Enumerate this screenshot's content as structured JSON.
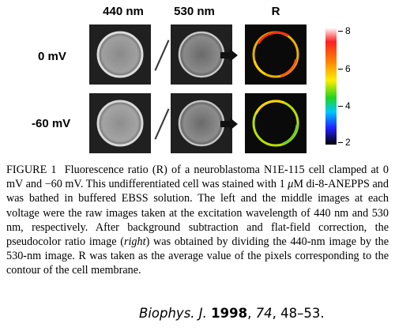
{
  "figure": {
    "column_headers": [
      "440 nm",
      "530 nm",
      "R"
    ],
    "row_labels": [
      "0 mV",
      "-60 mV"
    ],
    "colorbar": {
      "ticks": [
        "8",
        "6",
        "4",
        "2"
      ],
      "colors": [
        "#ffffff",
        "#ff2020",
        "#ff8a00",
        "#ffee00",
        "#1fd41f",
        "#00c8ff",
        "#2020ff",
        "#000000"
      ]
    }
  },
  "caption": {
    "label": "FIGURE 1",
    "text_part1": "Fluorescence ratio (R) of a neuroblastoma N1E-115 cell clamped at 0 mV and −60 mV. This undifferentiated cell was stained with 1 ",
    "mu": "μ",
    "text_part2": "M di-8-ANEPPS and was bathed in buffered EBSS solution. The left and the middle images at each voltage were the raw images taken at the excitation wavelength of 440 nm and 530 nm, respectively. After background subtraction and flat-field correction, the pseudocolor ratio image (",
    "italic_word": "right",
    "text_part3": ") was obtained by dividing the 440-nm image by the 530-nm image. R was taken as the average value of the pixels corresponding to the contour of the cell membrane."
  },
  "citation": {
    "journal": "Biophys. J.",
    "year": "1998",
    "volume": "74",
    "pages": "48–53."
  }
}
